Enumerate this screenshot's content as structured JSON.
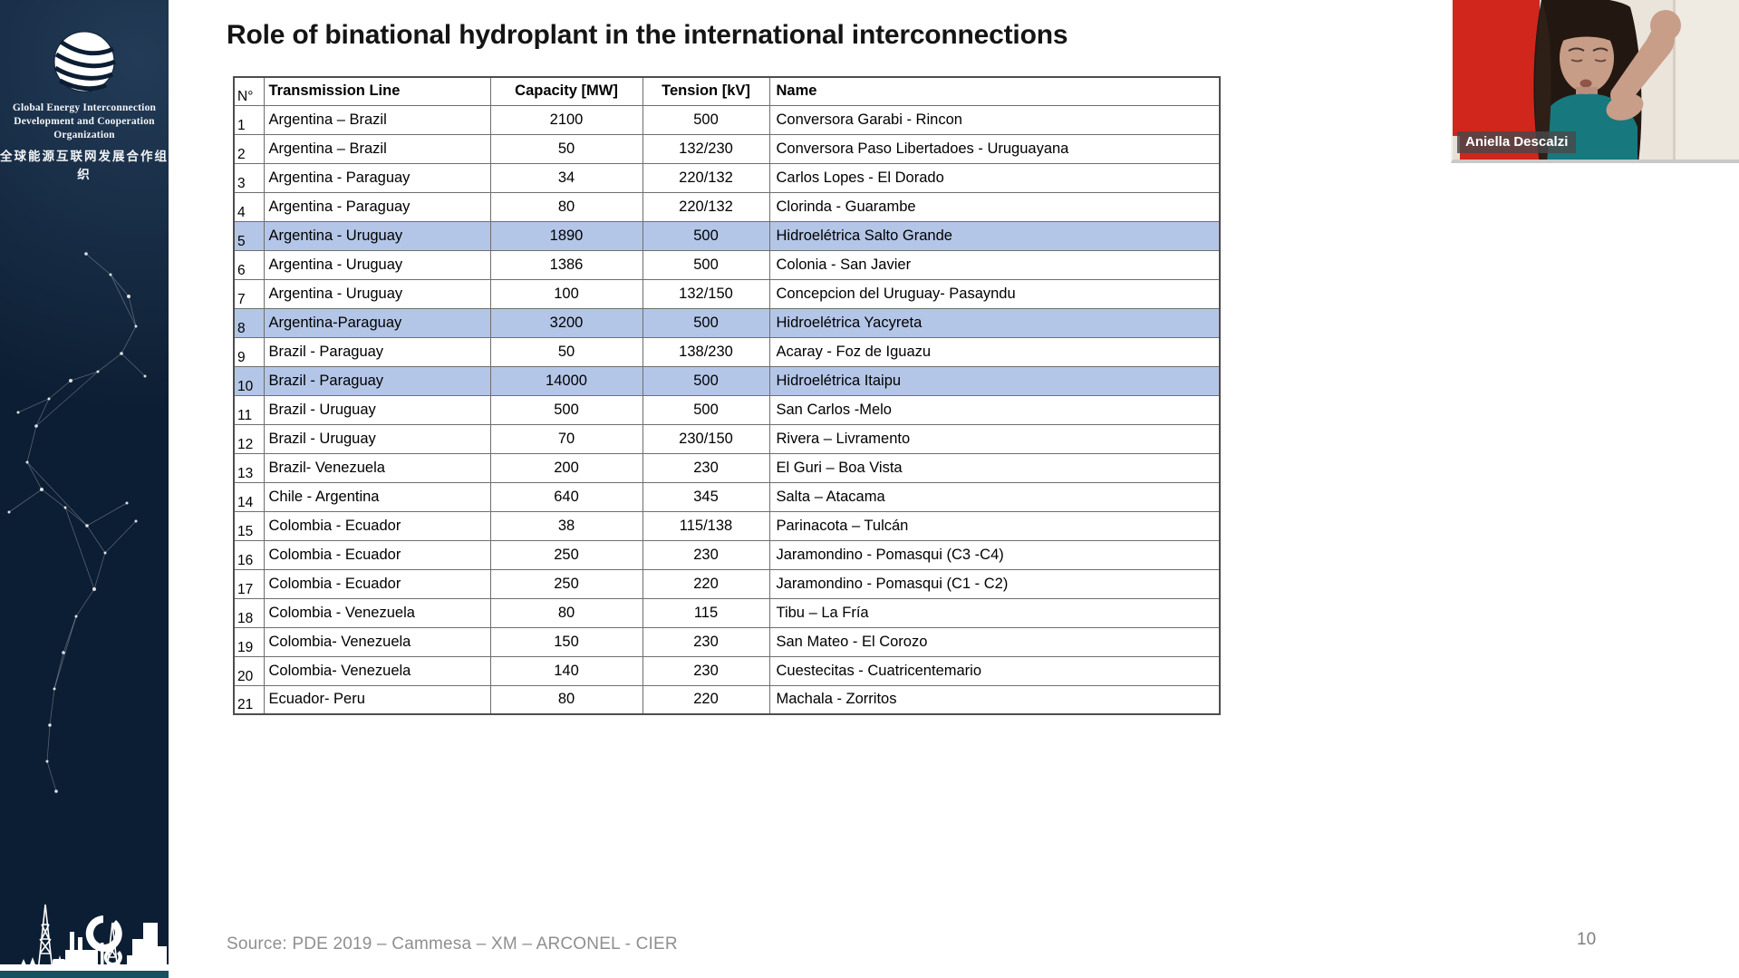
{
  "slide": {
    "title": "Role of binational hydroplant in the international interconnections",
    "source": "Source: PDE 2019 – Cammesa – XM – ARCONEL - CIER",
    "page_number": "10"
  },
  "sidebar": {
    "org_name_line1": "Global Energy Interconnection",
    "org_name_line2": "Development and Cooperation Organization",
    "org_name_cn": "全球能源互联网发展合作组织",
    "background_color": "#0c1e33",
    "logo_icon": "striped-globe-icon"
  },
  "webcam": {
    "participant_name": "Aniella Descalzi"
  },
  "table": {
    "headers": [
      "N°",
      "Transmission Line",
      "Capacity [MW]",
      "Tension [kV]",
      "Name"
    ],
    "highlight_color": "#b4c6e7",
    "highlighted_rows": [
      5,
      8,
      10
    ],
    "rows": [
      [
        "1",
        "Argentina – Brazil",
        "2100",
        "500",
        "Conversora Garabi - Rincon"
      ],
      [
        "2",
        "Argentina – Brazil",
        "50",
        "132/230",
        "Conversora Paso Libertadoes - Uruguayana"
      ],
      [
        "3",
        "Argentina - Paraguay",
        "34",
        "220/132",
        "Carlos Lopes - El Dorado"
      ],
      [
        "4",
        "Argentina - Paraguay",
        "80",
        "220/132",
        "Clorinda  - Guarambe"
      ],
      [
        "5",
        "Argentina - Uruguay",
        "1890",
        "500",
        "Hidroelétrica Salto Grande"
      ],
      [
        "6",
        "Argentina - Uruguay",
        "1386",
        "500",
        "Colonia - San Javier"
      ],
      [
        "7",
        "Argentina - Uruguay",
        "100",
        "132/150",
        "Concepcion del Uruguay-  Pasayndu"
      ],
      [
        "8",
        "Argentina-Paraguay",
        "3200",
        "500",
        "Hidroelétrica Yacyreta"
      ],
      [
        "9",
        "Brazil - Paraguay",
        "50",
        "138/230",
        "Acaray - Foz de Iguazu"
      ],
      [
        "10",
        "Brazil - Paraguay",
        "14000",
        "500",
        "Hidroelétrica Itaipu"
      ],
      [
        "11",
        "Brazil - Uruguay",
        "500",
        "500",
        "San Carlos -Melo"
      ],
      [
        "12",
        "Brazil - Uruguay",
        "70",
        "230/150",
        "Rivera – Livramento"
      ],
      [
        "13",
        "Brazil- Venezuela",
        "200",
        "230",
        "El Guri – Boa Vista"
      ],
      [
        "14",
        "Chile - Argentina",
        "640",
        "345",
        "Salta – Atacama"
      ],
      [
        "15",
        "Colombia - Ecuador",
        "38",
        "115/138",
        "Parinacota – Tulcán"
      ],
      [
        "16",
        "Colombia - Ecuador",
        "250",
        "230",
        "Jaramondino - Pomasqui (C3 -C4)"
      ],
      [
        "17",
        "Colombia - Ecuador",
        "250",
        "220",
        "Jaramondino - Pomasqui (C1 - C2)"
      ],
      [
        "18",
        "Colombia - Venezuela",
        "80",
        "115",
        "Tibu – La Fría"
      ],
      [
        "19",
        "Colombia- Venezuela",
        "150",
        "230",
        "San Mateo - El Corozo"
      ],
      [
        "20",
        "Colombia- Venezuela",
        "140",
        "230",
        "Cuestecitas - Cuatricentemario"
      ],
      [
        "21",
        "Ecuador- Peru",
        "80",
        "220",
        "Machala - Zorritos"
      ]
    ]
  }
}
